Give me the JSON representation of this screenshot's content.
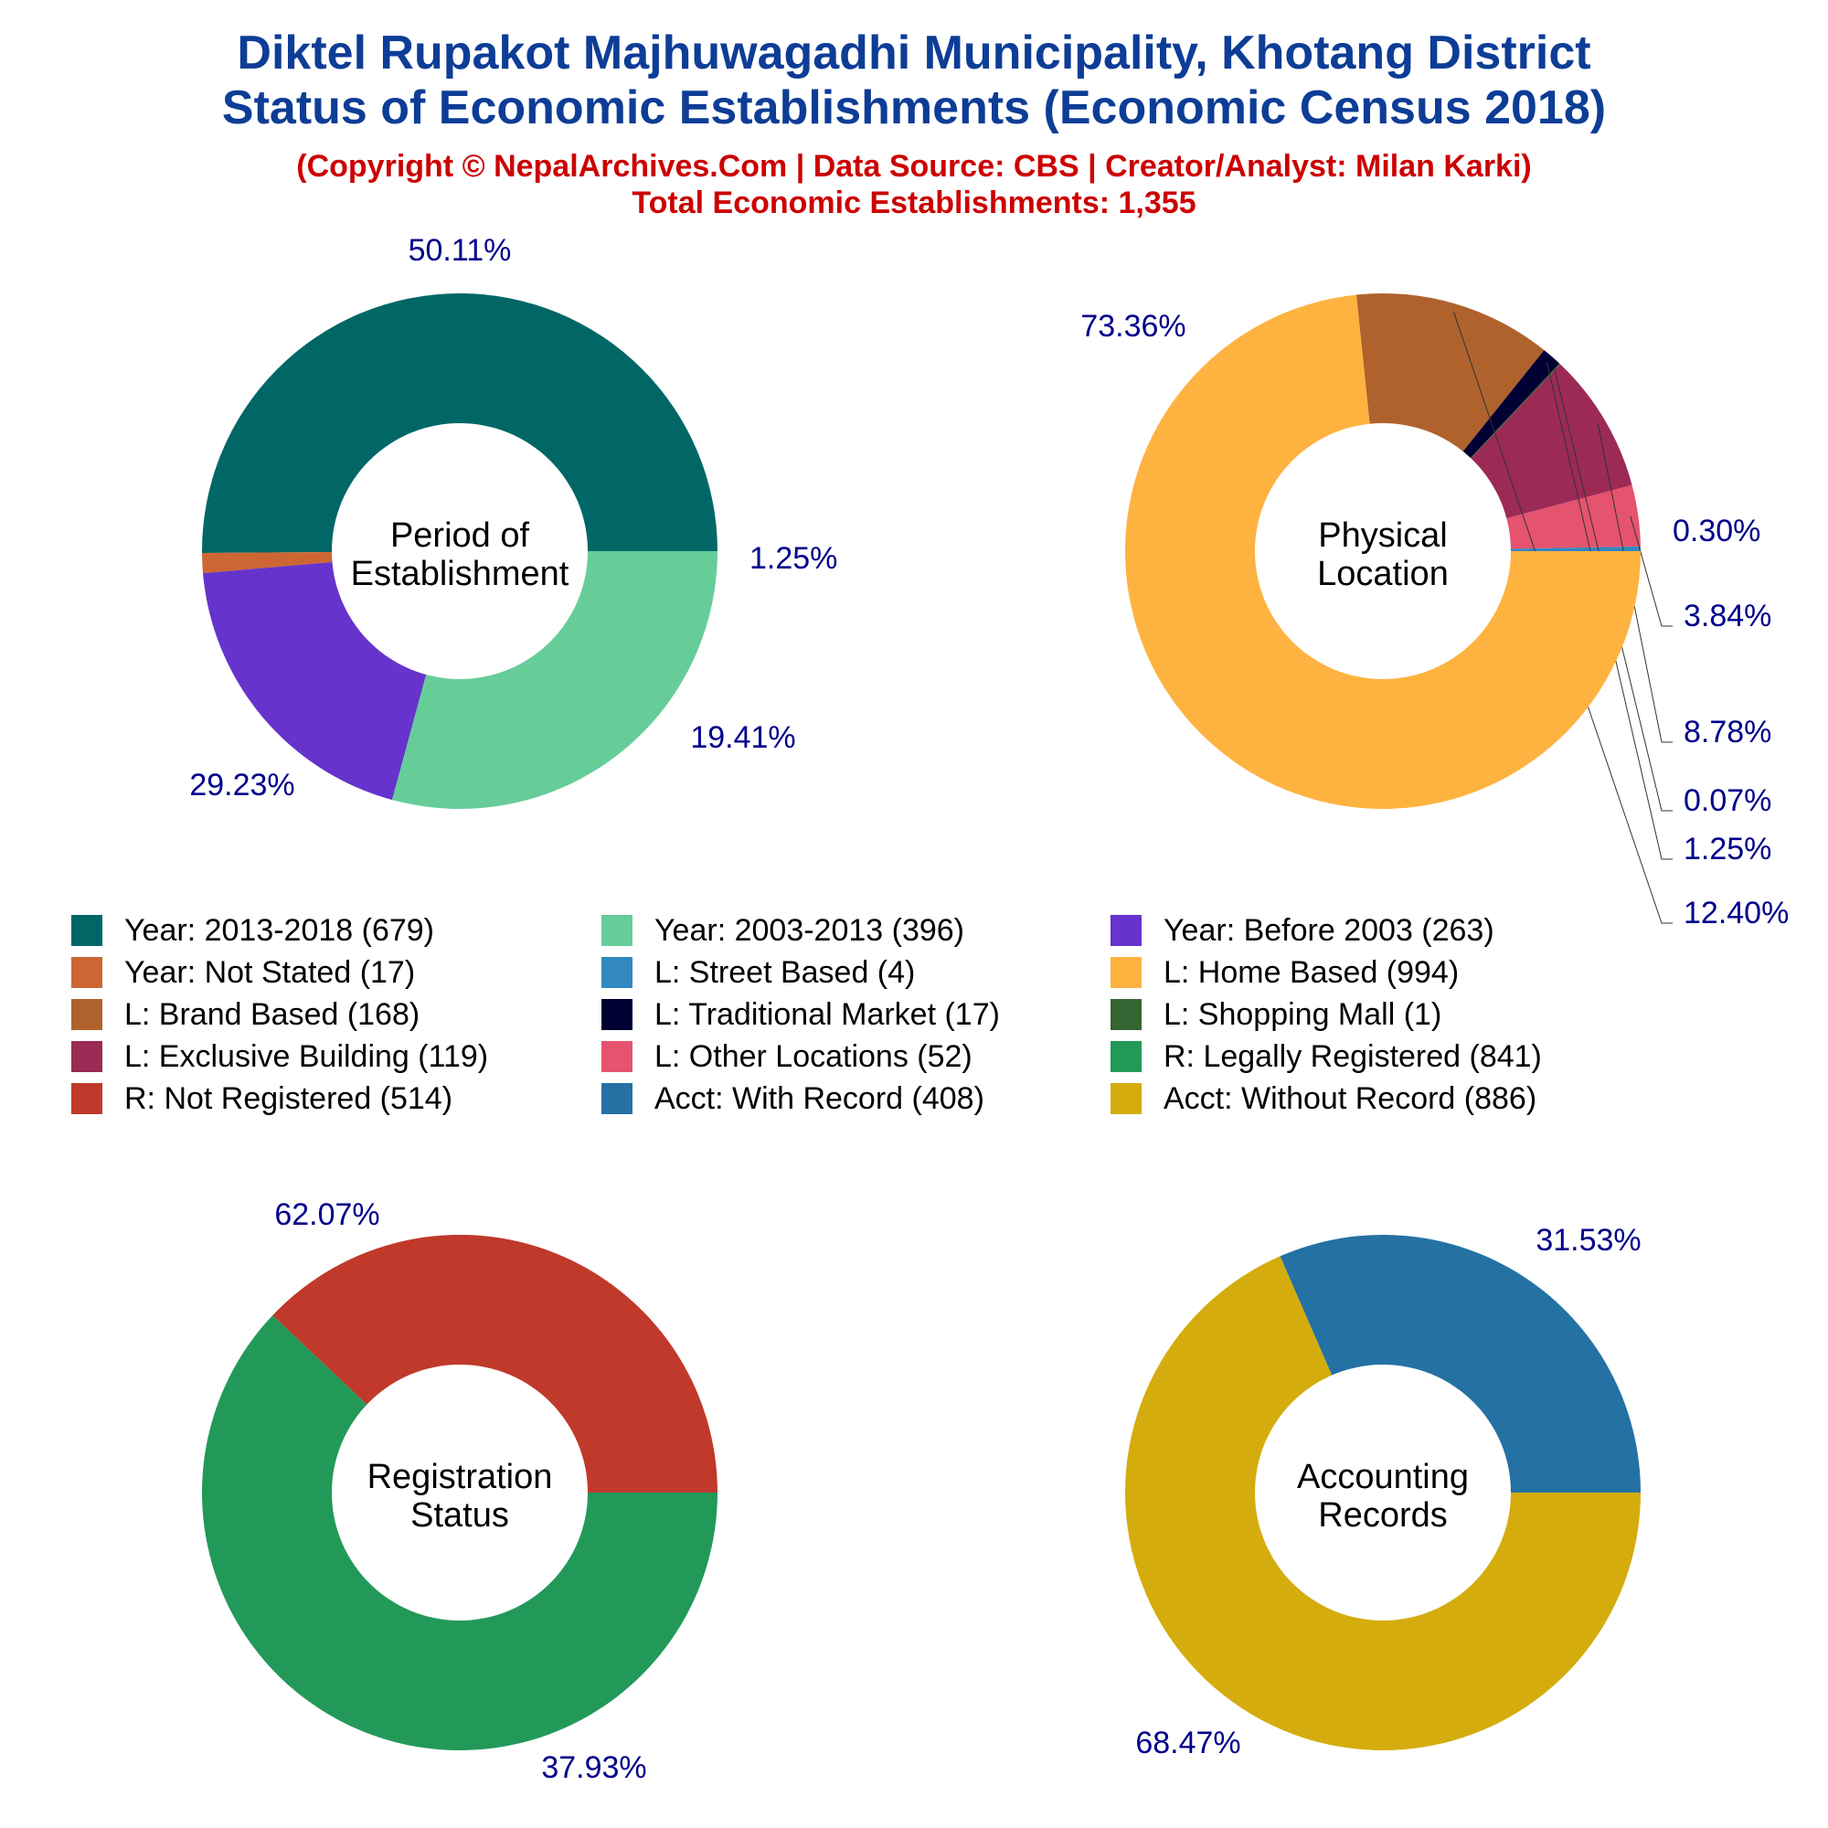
{
  "header": {
    "title_line1": "Diktel Rupakot Majhuwagadhi Municipality, Khotang District",
    "title_line2": "Status of Economic Establishments (Economic Census 2018)",
    "copyright": "(Copyright © NepalArchives.Com | Data Source: CBS | Creator/Analyst: Milan Karki)",
    "total": "Total Economic Establishments: 1,355"
  },
  "legend": [
    {
      "label": "Year: 2013-2018 (679)",
      "color": "#006766"
    },
    {
      "label": "Year: 2003-2013 (396)",
      "color": "#66cd99"
    },
    {
      "label": "Year: Before 2003 (263)",
      "color": "#6633cc"
    },
    {
      "label": "Year: Not Stated (17)",
      "color": "#cd6633"
    },
    {
      "label": "L: Street Based (4)",
      "color": "#3288c0"
    },
    {
      "label": "L: Home Based (994)",
      "color": "#feb340"
    },
    {
      "label": "L: Brand Based (168)",
      "color": "#b0622c"
    },
    {
      "label": "L: Traditional Market (17)",
      "color": "#000033"
    },
    {
      "label": "L: Shopping Mall (1)",
      "color": "#336633"
    },
    {
      "label": "L: Exclusive Building (119)",
      "color": "#9b2a55"
    },
    {
      "label": "L: Other Locations (52)",
      "color": "#e5536f"
    },
    {
      "label": "R: Legally Registered (841)",
      "color": "#229959"
    },
    {
      "label": "R: Not Registered (514)",
      "color": "#c0392b"
    },
    {
      "label": "Acct: With Record (408)",
      "color": "#2471a3"
    },
    {
      "label": "Acct: Without Record (886)",
      "color": "#d4ac0d"
    }
  ],
  "chart_data": [
    {
      "type": "pie",
      "title": "Period of Establishment",
      "center_label": [
        "Period of",
        "Establishment"
      ],
      "categories": [
        "Year: 2013-2018",
        "Year: Not Stated",
        "Year: Before 2003",
        "Year: 2003-2013"
      ],
      "values": [
        679,
        17,
        263,
        396
      ],
      "colors": [
        "#006766",
        "#cd6633",
        "#6633cc",
        "#66cd99"
      ],
      "labels": [
        "50.11%",
        "1.25%",
        "19.41%",
        "29.23%"
      ]
    },
    {
      "type": "pie",
      "title": "Physical Location",
      "center_label": [
        "Physical",
        "Location"
      ],
      "categories": [
        "L: Street Based",
        "L: Other Locations",
        "L: Exclusive Building",
        "L: Shopping Mall",
        "L: Traditional Market",
        "L: Brand Based",
        "L: Home Based"
      ],
      "values": [
        4,
        52,
        119,
        1,
        17,
        168,
        994
      ],
      "colors": [
        "#3288c0",
        "#e5536f",
        "#9b2a55",
        "#336633",
        "#000033",
        "#b0622c",
        "#feb340"
      ],
      "labels": [
        "0.30%",
        "3.84%",
        "8.78%",
        "0.07%",
        "1.25%",
        "12.40%",
        "73.36%"
      ]
    },
    {
      "type": "pie",
      "title": "Registration Status",
      "center_label": [
        "Registration",
        "Status"
      ],
      "categories": [
        "R: Not Registered",
        "R: Legally Registered"
      ],
      "values": [
        514,
        841
      ],
      "colors": [
        "#c0392b",
        "#229959"
      ],
      "labels": [
        "37.93%",
        "62.07%"
      ]
    },
    {
      "type": "pie",
      "title": "Accounting Records",
      "center_label": [
        "Accounting",
        "Records"
      ],
      "categories": [
        "Acct: With Record",
        "Acct: Without Record"
      ],
      "values": [
        408,
        886
      ],
      "colors": [
        "#2471a3",
        "#d4ac0d"
      ],
      "labels": [
        "31.53%",
        "68.47%"
      ]
    }
  ]
}
